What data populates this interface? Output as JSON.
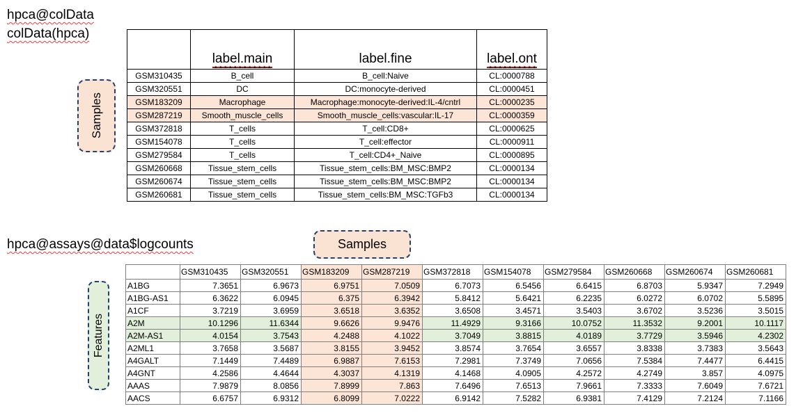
{
  "colors": {
    "peach_highlight": "#FCE4D6",
    "green_highlight": "#E2EFDA",
    "callout_border": "#24406e",
    "squiggle_red": "#f03b3b"
  },
  "top": {
    "title_line1": "hpca@colData",
    "title_line2": "colData(hpca)",
    "callout_label": "Samples",
    "columns": [
      {
        "label": "",
        "underline": false
      },
      {
        "label": "label.main",
        "underline": true
      },
      {
        "label": "label.fine",
        "underline": false
      },
      {
        "label": "label.ont",
        "underline": true
      }
    ],
    "rows": [
      {
        "id": "GSM310435",
        "main": "B_cell",
        "fine": "B_cell:Naive",
        "ont": "CL:0000788",
        "highlight": false,
        "squiggle_main": false
      },
      {
        "id": "GSM320551",
        "main": "DC",
        "fine": "DC:monocyte-derived",
        "ont": "CL:0000451",
        "highlight": false,
        "squiggle_main": false
      },
      {
        "id": "GSM183209",
        "main": "Macrophage",
        "fine": "Macrophage:monocyte-derived:IL-4/cntrl",
        "ont": "CL:0000235",
        "highlight": true,
        "squiggle_main": false
      },
      {
        "id": "GSM287219",
        "main": "Smooth_muscle_cells",
        "fine": "Smooth_muscle_cells:vascular:IL-17",
        "ont": "CL:0000359",
        "highlight": true,
        "squiggle_main": true
      },
      {
        "id": "GSM372818",
        "main": "T_cells",
        "fine": "T_cell:CD8+",
        "ont": "CL:0000625",
        "highlight": false,
        "squiggle_main": false
      },
      {
        "id": "GSM154078",
        "main": "T_cells",
        "fine": "T_cell:effector",
        "ont": "CL:0000911",
        "highlight": false,
        "squiggle_main": false
      },
      {
        "id": "GSM279584",
        "main": "T_cells",
        "fine": "T_cell:CD4+_Naive",
        "ont": "CL:0000895",
        "highlight": false,
        "squiggle_main": false
      },
      {
        "id": "GSM260668",
        "main": "Tissue_stem_cells",
        "fine": "Tissue_stem_cells:BM_MSC:BMP2",
        "ont": "CL:0000134",
        "highlight": false,
        "squiggle_main": false
      },
      {
        "id": "GSM260674",
        "main": "Tissue_stem_cells",
        "fine": "Tissue_stem_cells:BM_MSC:BMP2",
        "ont": "CL:0000134",
        "highlight": false,
        "squiggle_main": false
      },
      {
        "id": "GSM260681",
        "main": "Tissue_stem_cells",
        "fine": "Tissue_stem_cells:BM_MSC:TGFb3",
        "ont": "CL:0000134",
        "highlight": false,
        "squiggle_main": false
      }
    ]
  },
  "bottom": {
    "title": "hpca@assays@data$logcounts",
    "samples_label": "Samples",
    "features_label": "Features",
    "columns": [
      {
        "id": "GSM310435",
        "highlight": false
      },
      {
        "id": "GSM320551",
        "highlight": false
      },
      {
        "id": "GSM183209",
        "highlight": true
      },
      {
        "id": "GSM287219",
        "highlight": true
      },
      {
        "id": "GSM372818",
        "highlight": false
      },
      {
        "id": "GSM154078",
        "highlight": false
      },
      {
        "id": "GSM279584",
        "highlight": false
      },
      {
        "id": "GSM260668",
        "highlight": false
      },
      {
        "id": "GSM260674",
        "highlight": false
      },
      {
        "id": "GSM260681",
        "highlight": false
      }
    ],
    "rows": [
      {
        "gene": "A1BG",
        "highlight": false,
        "values": [
          "7.3651",
          "6.9673",
          "6.9751",
          "7.0509",
          "6.7073",
          "6.5456",
          "6.6415",
          "6.8703",
          "5.9347",
          "7.2949"
        ]
      },
      {
        "gene": "A1BG-AS1",
        "highlight": false,
        "values": [
          "6.3622",
          "6.0945",
          "6.375",
          "6.3942",
          "5.8412",
          "5.6421",
          "6.2235",
          "6.0272",
          "6.0702",
          "5.5895"
        ]
      },
      {
        "gene": "A1CF",
        "highlight": false,
        "values": [
          "3.7219",
          "3.6959",
          "3.6518",
          "3.6352",
          "3.6508",
          "3.4571",
          "3.5403",
          "3.6702",
          "3.5236",
          "3.5015"
        ]
      },
      {
        "gene": "A2M",
        "highlight": true,
        "values": [
          "10.1296",
          "11.6344",
          "9.6626",
          "9.9476",
          "11.4929",
          "9.3166",
          "10.0752",
          "11.3532",
          "9.2001",
          "10.1117"
        ]
      },
      {
        "gene": "A2M-AS1",
        "highlight": true,
        "values": [
          "4.0154",
          "3.7543",
          "4.2488",
          "4.1022",
          "3.7049",
          "3.8815",
          "4.0189",
          "3.7729",
          "3.5946",
          "4.2302"
        ]
      },
      {
        "gene": "A2ML1",
        "highlight": false,
        "values": [
          "3.7658",
          "3.5687",
          "3.8155",
          "3.9452",
          "3.8574",
          "3.7654",
          "3.6557",
          "3.8338",
          "3.7383",
          "3.5643"
        ]
      },
      {
        "gene": "A4GALT",
        "highlight": false,
        "values": [
          "7.1449",
          "7.4489",
          "6.9887",
          "7.6153",
          "7.2981",
          "7.3749",
          "7.0656",
          "7.5384",
          "7.4477",
          "6.4415"
        ]
      },
      {
        "gene": "A4GNT",
        "highlight": false,
        "values": [
          "4.2586",
          "4.4644",
          "4.3037",
          "4.1319",
          "4.1468",
          "4.0905",
          "4.2572",
          "4.2749",
          "3.857",
          "4.0975"
        ]
      },
      {
        "gene": "AAAS",
        "highlight": false,
        "values": [
          "7.9879",
          "8.0856",
          "7.8999",
          "7.863",
          "7.6496",
          "7.6513",
          "7.9661",
          "7.3333",
          "7.6049",
          "7.6721"
        ]
      },
      {
        "gene": "AACS",
        "highlight": false,
        "values": [
          "6.6757",
          "6.9312",
          "6.8099",
          "7.0222",
          "6.9142",
          "7.5282",
          "6.9381",
          "7.4129",
          "7.2124",
          "7.1166"
        ]
      }
    ]
  }
}
